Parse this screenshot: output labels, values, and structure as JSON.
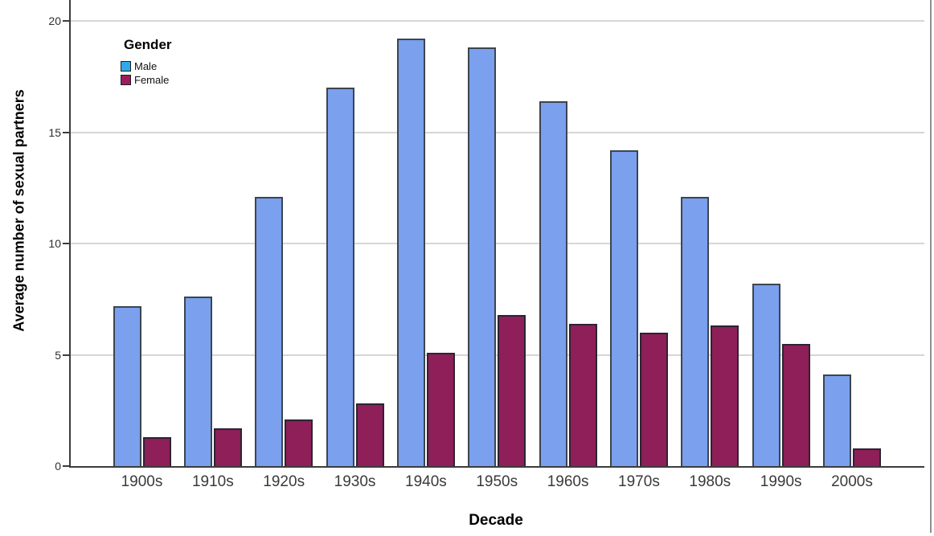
{
  "chart_data": {
    "type": "bar",
    "title": "",
    "xlabel": "Decade",
    "ylabel": "Average number of sexual partners",
    "categories": [
      "1900s",
      "1910s",
      "1920s",
      "1930s",
      "1940s",
      "1950s",
      "1960s",
      "1970s",
      "1980s",
      "1990s",
      "2000s"
    ],
    "series": [
      {
        "name": "Male",
        "color": "#7aa0ee",
        "border_color": "#3d4450",
        "values": [
          7.2,
          7.6,
          12.1,
          17.0,
          19.2,
          18.8,
          16.4,
          14.2,
          12.1,
          8.2,
          4.1
        ]
      },
      {
        "name": "Female",
        "color": "#8e1f58",
        "border_color": "#2c2433",
        "values": [
          1.3,
          1.7,
          2.1,
          2.8,
          5.1,
          6.8,
          6.4,
          6.0,
          6.3,
          5.5,
          0.8
        ]
      }
    ],
    "yticks": [
      "0",
      "5",
      "10",
      "15",
      "20"
    ],
    "ytick_values": [
      0,
      5,
      10,
      15,
      20
    ],
    "ylim": [
      0,
      20.9
    ],
    "grid": "horizontal",
    "legend_position": "inside-top-left",
    "grid_color": "#d6d6d6",
    "axis_color": "#3c3c3c"
  },
  "legend": {
    "title": "Gender",
    "items": [
      {
        "label": "Male",
        "swatch_color": "#2fa9ea"
      },
      {
        "label": "Female",
        "swatch_color": "#9c1c5c"
      }
    ]
  }
}
